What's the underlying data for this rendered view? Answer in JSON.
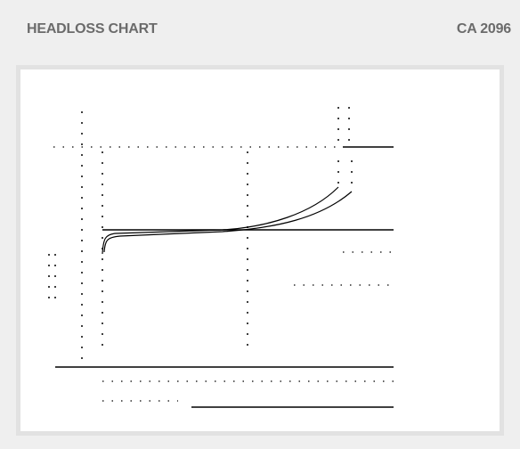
{
  "header": {
    "title": "HEADLOSS CHART",
    "code": "CA 2096"
  }
}
